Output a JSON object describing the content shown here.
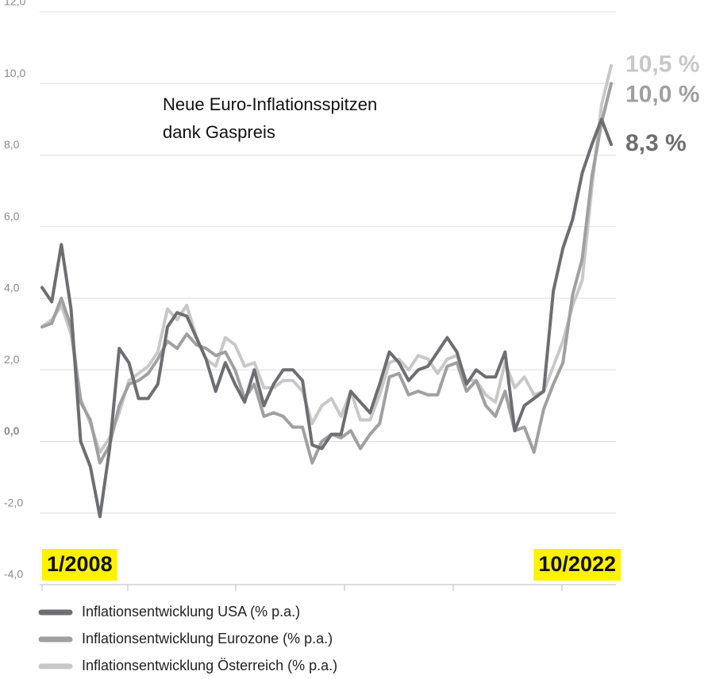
{
  "chart_data": {
    "type": "line",
    "annotation": [
      "Neue Euro-Inflationsspitzen",
      "dank Gaspreis"
    ],
    "categories": [
      "1/2008",
      null,
      null,
      null,
      null,
      null,
      null,
      null,
      null,
      null,
      null,
      null,
      null,
      null,
      null,
      null,
      null,
      null,
      null,
      null,
      null,
      null,
      null,
      null,
      null,
      null,
      null,
      null,
      null,
      null,
      null,
      null,
      null,
      null,
      null,
      null,
      null,
      null,
      null,
      null,
      null,
      null,
      null,
      null,
      null,
      null,
      null,
      null,
      null,
      null,
      null,
      null,
      null,
      null,
      null,
      null,
      null,
      null,
      null,
      "10/2022"
    ],
    "ylim": [
      -4,
      12
    ],
    "yticks": [
      {
        "value": -4,
        "label": "-4,0"
      },
      {
        "value": -2,
        "label": "-2,0"
      },
      {
        "value": 0,
        "label": "0,0"
      },
      {
        "value": 2,
        "label": "2,0"
      },
      {
        "value": 4,
        "label": "4,0"
      },
      {
        "value": 6,
        "label": "6,0"
      },
      {
        "value": 8,
        "label": "8,0"
      },
      {
        "value": 10,
        "label": "10,0"
      },
      {
        "value": 12,
        "label": "12,0"
      }
    ],
    "grid": true,
    "series": [
      {
        "name": "Inflationsentwicklung USA (% p.a.)",
        "color": "#6d6e71",
        "values": [
          4.3,
          3.9,
          5.5,
          3.7,
          0.0,
          -0.7,
          -2.1,
          -0.2,
          2.6,
          2.2,
          1.2,
          1.2,
          1.6,
          3.2,
          3.6,
          3.5,
          2.9,
          2.3,
          1.4,
          2.2,
          1.6,
          1.1,
          2.0,
          1.0,
          1.6,
          2.0,
          2.0,
          1.7,
          -0.1,
          -0.2,
          0.2,
          0.2,
          1.4,
          1.1,
          0.8,
          1.6,
          2.5,
          2.2,
          1.7,
          2.0,
          2.1,
          2.5,
          2.9,
          2.5,
          1.6,
          2.0,
          1.8,
          1.8,
          2.5,
          0.3,
          1.0,
          1.2,
          1.4,
          4.2,
          5.4,
          6.2,
          7.5,
          8.3,
          9.0,
          8.3
        ],
        "value_labels": [
          null,
          null,
          null,
          null,
          null,
          null,
          null,
          null,
          null,
          null,
          null,
          null,
          null,
          null,
          null,
          null,
          null,
          null,
          null,
          null,
          null,
          null,
          null,
          null,
          null,
          null,
          null,
          null,
          null,
          null,
          null,
          null,
          null,
          null,
          null,
          null,
          null,
          null,
          null,
          null,
          null,
          null,
          null,
          null,
          null,
          null,
          null,
          null,
          null,
          null,
          null,
          null,
          null,
          null,
          null,
          null,
          null,
          null,
          null,
          "8,3 %"
        ]
      },
      {
        "name": "Inflationsentwicklung Eurozone (% p.a.)",
        "color": "#a0a0a0",
        "values": [
          3.2,
          3.3,
          4.0,
          3.2,
          1.1,
          0.6,
          -0.6,
          -0.1,
          1.0,
          1.6,
          1.7,
          1.9,
          2.3,
          2.8,
          2.6,
          3.0,
          2.7,
          2.6,
          2.4,
          2.5,
          2.0,
          1.2,
          1.6,
          0.7,
          0.8,
          0.7,
          0.4,
          0.4,
          -0.6,
          0.0,
          0.2,
          0.1,
          0.3,
          -0.2,
          0.2,
          0.5,
          1.8,
          1.9,
          1.3,
          1.4,
          1.3,
          1.3,
          2.1,
          2.2,
          1.4,
          1.7,
          1.0,
          0.7,
          1.4,
          0.3,
          0.4,
          -0.3,
          0.9,
          1.6,
          2.2,
          4.1,
          5.1,
          7.4,
          8.9,
          10.0
        ],
        "value_labels": [
          null,
          null,
          null,
          null,
          null,
          null,
          null,
          null,
          null,
          null,
          null,
          null,
          null,
          null,
          null,
          null,
          null,
          null,
          null,
          null,
          null,
          null,
          null,
          null,
          null,
          null,
          null,
          null,
          null,
          null,
          null,
          null,
          null,
          null,
          null,
          null,
          null,
          null,
          null,
          null,
          null,
          null,
          null,
          null,
          null,
          null,
          null,
          null,
          null,
          null,
          null,
          null,
          null,
          null,
          null,
          null,
          null,
          null,
          null,
          "10,0 %"
        ]
      },
      {
        "name": "Inflationsentwicklung Österreich (% p.a.)",
        "color": "#c8c8c8",
        "values": [
          3.2,
          3.4,
          3.8,
          3.0,
          1.2,
          0.5,
          -0.3,
          0.1,
          0.8,
          1.7,
          1.9,
          2.1,
          2.5,
          3.7,
          3.4,
          3.8,
          2.9,
          2.3,
          2.1,
          2.9,
          2.7,
          2.1,
          2.2,
          1.5,
          1.5,
          1.7,
          1.7,
          1.4,
          0.5,
          1.0,
          1.2,
          0.7,
          1.4,
          0.6,
          0.6,
          1.3,
          2.2,
          2.3,
          2.0,
          2.4,
          2.3,
          1.9,
          2.3,
          2.4,
          1.7,
          1.7,
          1.3,
          1.1,
          2.2,
          1.5,
          1.8,
          1.3,
          1.4,
          2.1,
          2.8,
          3.8,
          4.5,
          7.1,
          9.4,
          10.5
        ],
        "value_labels": [
          null,
          null,
          null,
          null,
          null,
          null,
          null,
          null,
          null,
          null,
          null,
          null,
          null,
          null,
          null,
          null,
          null,
          null,
          null,
          null,
          null,
          null,
          null,
          null,
          null,
          null,
          null,
          null,
          null,
          null,
          null,
          null,
          null,
          null,
          null,
          null,
          null,
          null,
          null,
          null,
          null,
          null,
          null,
          null,
          null,
          null,
          null,
          null,
          null,
          null,
          null,
          null,
          null,
          null,
          null,
          null,
          null,
          null,
          null,
          "10,5 %"
        ]
      }
    ]
  }
}
